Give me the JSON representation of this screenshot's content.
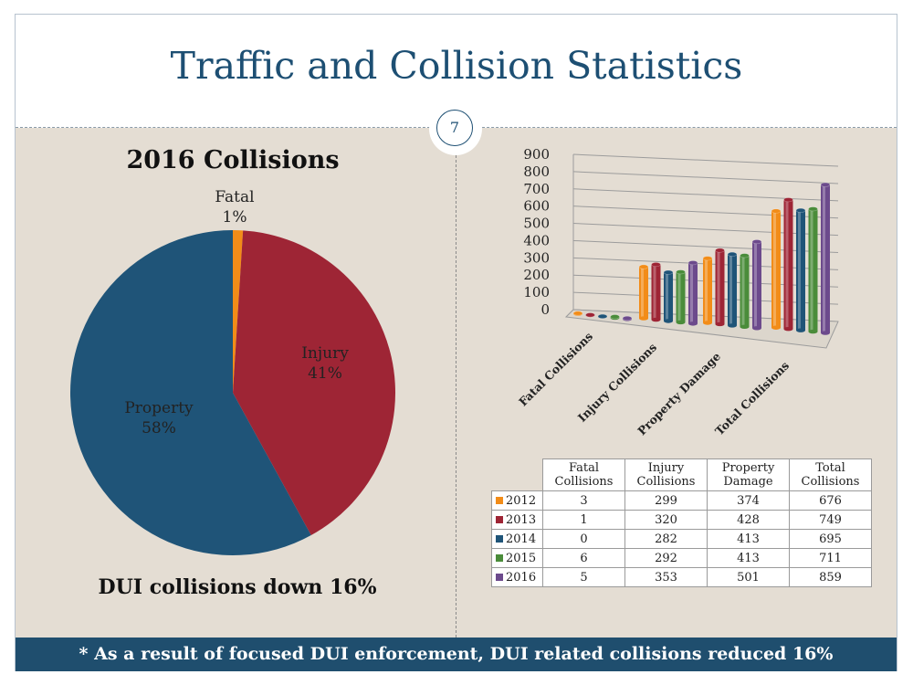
{
  "title": "Traffic and Collision Statistics",
  "page_number": "7",
  "footer": "* As a result of focused DUI enforcement, DUI related collisions reduced 16%",
  "colors": {
    "2012": "#f28c18",
    "2013": "#9e2535",
    "2014": "#1f5478",
    "2015": "#4a8c3a",
    "2016": "#6c4a8c",
    "fatal": "#f28c18",
    "injury": "#9e2535",
    "property": "#1f5478"
  },
  "pie": {
    "title": "2016 Collisions",
    "note": "DUI collisions down 16%",
    "slices": [
      {
        "name": "Fatal",
        "pct_label": "1%",
        "value": 1
      },
      {
        "name": "Injury",
        "pct_label": "41%",
        "value": 41
      },
      {
        "name": "Property",
        "pct_label": "58%",
        "value": 58
      }
    ]
  },
  "table": {
    "headers": [
      "Fatal Collisions",
      "Injury Collisions",
      "Property Damage",
      "Total Collisions"
    ],
    "rows": [
      {
        "year": "2012",
        "values": [
          "3",
          "299",
          "374",
          "676"
        ]
      },
      {
        "year": "2013",
        "values": [
          "1",
          "320",
          "428",
          "749"
        ]
      },
      {
        "year": "2014",
        "values": [
          "0",
          "282",
          "413",
          "695"
        ]
      },
      {
        "year": "2015",
        "values": [
          "6",
          "292",
          "413",
          "711"
        ]
      },
      {
        "year": "2016",
        "values": [
          "5",
          "353",
          "501",
          "859"
        ]
      }
    ]
  },
  "chart_data": [
    {
      "type": "pie",
      "title": "2016 Collisions",
      "categories": [
        "Fatal",
        "Injury",
        "Property"
      ],
      "values": [
        1,
        41,
        58
      ],
      "labels": [
        "Fatal 1%",
        "Injury 41%",
        "Property 58%"
      ]
    },
    {
      "type": "bar",
      "title": "",
      "categories": [
        "Fatal Collisions",
        "Injury Collisions",
        "Property Damage",
        "Total Collisions"
      ],
      "series": [
        {
          "name": "2012",
          "values": [
            3,
            299,
            374,
            676
          ]
        },
        {
          "name": "2013",
          "values": [
            1,
            320,
            428,
            749
          ]
        },
        {
          "name": "2014",
          "values": [
            0,
            282,
            413,
            695
          ]
        },
        {
          "name": "2015",
          "values": [
            6,
            292,
            413,
            711
          ]
        },
        {
          "name": "2016",
          "values": [
            5,
            353,
            501,
            859
          ]
        }
      ],
      "ylim": [
        0,
        900
      ],
      "yticks": [
        "900",
        "800",
        "700",
        "600",
        "500",
        "400",
        "300",
        "200",
        "100",
        "0"
      ],
      "grid": true,
      "style": "3d-cylinder"
    }
  ]
}
